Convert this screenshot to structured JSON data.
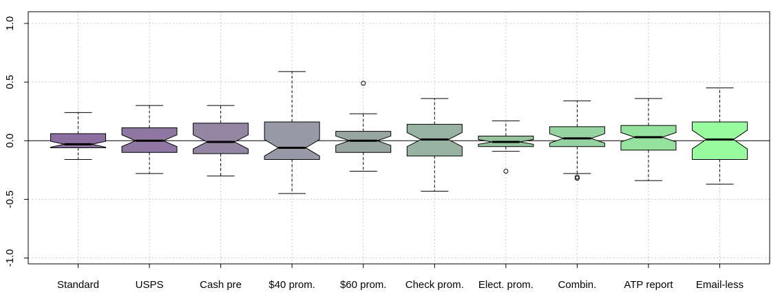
{
  "chart_data": {
    "type": "boxplot",
    "notched": true,
    "title": "",
    "xlabel": "",
    "ylabel": "",
    "ylim": [
      -1.05,
      1.1
    ],
    "yticks": [
      -1.0,
      -0.5,
      0.0,
      0.5,
      1.0
    ],
    "ytick_labels": [
      "-1.0",
      "-0.5",
      "0.0",
      "0.5",
      "1.0"
    ],
    "grid": true,
    "reference_line": 0.0,
    "categories": [
      "Standard",
      "USPS",
      "Cash pre",
      "$40 prom.",
      "$60 prom.",
      "Check prom.",
      "Elect. prom.",
      "Combin.",
      "ATP report",
      "Email-less"
    ],
    "boxes": [
      {
        "whisker_low": -0.16,
        "q1": -0.06,
        "median": -0.03,
        "q3": 0.06,
        "whisker_high": 0.24,
        "notch_low": -0.055,
        "notch_high": -0.005,
        "outliers": [],
        "color": "#8b6fa0"
      },
      {
        "whisker_low": -0.28,
        "q1": -0.1,
        "median": 0.0,
        "q3": 0.11,
        "whisker_high": 0.3,
        "notch_low": -0.05,
        "notch_high": 0.05,
        "outliers": [],
        "color": "#8e77a1"
      },
      {
        "whisker_low": -0.3,
        "q1": -0.11,
        "median": -0.01,
        "q3": 0.15,
        "whisker_high": 0.3,
        "notch_low": -0.07,
        "notch_high": 0.05,
        "outliers": [],
        "color": "#9486a2"
      },
      {
        "whisker_low": -0.45,
        "q1": -0.16,
        "median": -0.06,
        "q3": 0.16,
        "whisker_high": 0.59,
        "notch_low": -0.13,
        "notch_high": 0.01,
        "outliers": [],
        "color": "#9799a6"
      },
      {
        "whisker_low": -0.26,
        "q1": -0.1,
        "median": 0.0,
        "q3": 0.08,
        "whisker_high": 0.23,
        "notch_low": -0.04,
        "notch_high": 0.04,
        "outliers": [
          0.49
        ],
        "color": "#97a6a1"
      },
      {
        "whisker_low": -0.43,
        "q1": -0.13,
        "median": 0.01,
        "q3": 0.14,
        "whisker_high": 0.36,
        "notch_low": -0.05,
        "notch_high": 0.07,
        "outliers": [],
        "color": "#97b2a0"
      },
      {
        "whisker_low": -0.09,
        "q1": -0.05,
        "median": -0.01,
        "q3": 0.04,
        "whisker_high": 0.17,
        "notch_low": -0.03,
        "notch_high": 0.01,
        "outliers": [
          -0.26
        ],
        "color": "#96c29e"
      },
      {
        "whisker_low": -0.28,
        "q1": -0.05,
        "median": 0.02,
        "q3": 0.12,
        "whisker_high": 0.34,
        "notch_low": -0.02,
        "notch_high": 0.06,
        "outliers": [
          -0.31,
          -0.32
        ],
        "color": "#96d3a2"
      },
      {
        "whisker_low": -0.34,
        "q1": -0.08,
        "median": 0.03,
        "q3": 0.13,
        "whisker_high": 0.36,
        "notch_low": -0.01,
        "notch_high": 0.07,
        "outliers": [],
        "color": "#94e29e"
      },
      {
        "whisker_low": -0.37,
        "q1": -0.16,
        "median": 0.01,
        "q3": 0.16,
        "whisker_high": 0.45,
        "notch_low": -0.07,
        "notch_high": 0.09,
        "outliers": [],
        "color": "#98fc9e"
      }
    ]
  }
}
